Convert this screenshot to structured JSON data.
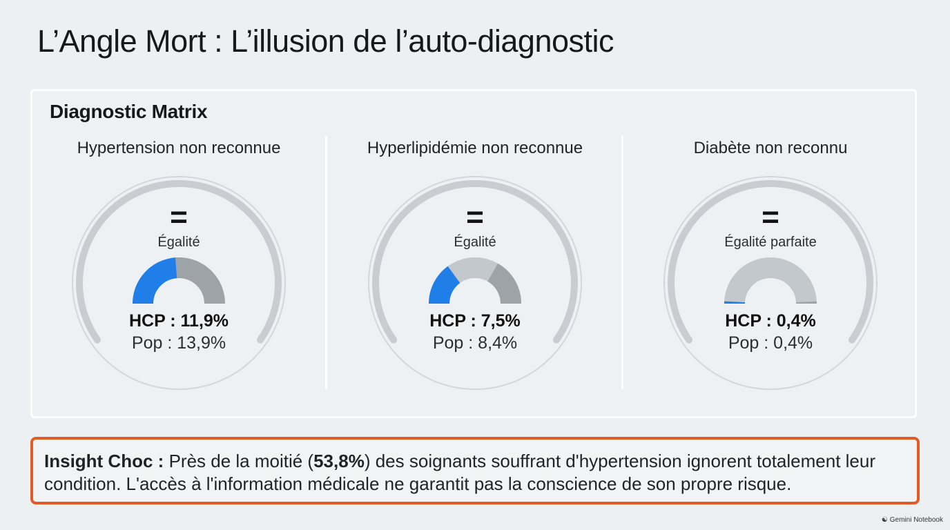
{
  "page": {
    "title": "L’Angle Mort : L’illusion de l’auto-diagnostic"
  },
  "matrix": {
    "title": "Diagnostic Matrix"
  },
  "chart_data": [
    {
      "type": "gauge",
      "title": "Hypertension non reconnue",
      "comparison_symbol": "=",
      "comparison_text": "Égalité",
      "series": [
        {
          "name": "HCP",
          "value": 11.9,
          "unit": "%"
        },
        {
          "name": "Pop",
          "value": 13.9,
          "unit": "%"
        }
      ],
      "hcp_text": "HCP : 11,9%",
      "pop_text": "Pop : 13,9%"
    },
    {
      "type": "gauge",
      "title": "Hyperlipidémie non reconnue",
      "comparison_symbol": "=",
      "comparison_text": "Égalité",
      "series": [
        {
          "name": "HCP",
          "value": 7.5,
          "unit": "%"
        },
        {
          "name": "Pop",
          "value": 8.4,
          "unit": "%"
        }
      ],
      "hcp_text": "HCP : 7,5%",
      "pop_text": "Pop : 8,4%"
    },
    {
      "type": "gauge",
      "title": "Diabète non reconnu",
      "comparison_symbol": "=",
      "comparison_text": "Égalité parfaite",
      "series": [
        {
          "name": "HCP",
          "value": 0.4,
          "unit": "%"
        },
        {
          "name": "Pop",
          "value": 0.4,
          "unit": "%"
        }
      ],
      "hcp_text": "HCP : 0,4%",
      "pop_text": "Pop : 0,4%"
    }
  ],
  "insight": {
    "label": "Insight Choc :",
    "text_before": "Près de la moitié (",
    "highlight": "53,8%",
    "text_after": ") des soignants souffrant d'hypertension ignorent totalement leur condition. L'accès à l'information médicale ne garantit pas la conscience de son propre risque."
  },
  "footer": {
    "brand": "Gemini Notebook"
  },
  "colors": {
    "hcp_arc": "#1f7ee8",
    "pop_arc": "#9ea3a8",
    "gauge_track": "#c3c8cd",
    "outer_ring": "#c9cdd2",
    "outer_circle": "#d3d7db",
    "insight_border": "#e35b24"
  }
}
